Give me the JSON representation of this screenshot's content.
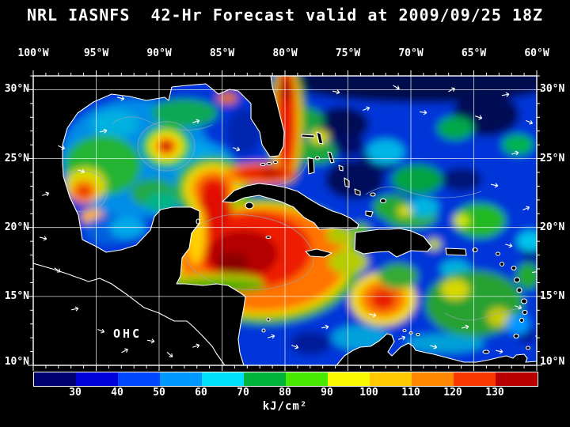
{
  "title": "NRL IASNFS  42-Hr Forecast valid at 2009/09/25 18Z",
  "axes": {
    "lon_ticks": [
      "100°W",
      "95°W",
      "90°W",
      "85°W",
      "80°W",
      "75°W",
      "70°W",
      "65°W",
      "60°W"
    ],
    "lat_ticks_left": [
      "30°N",
      "25°N",
      "20°N",
      "15°N",
      "10°N"
    ],
    "lat_ticks_right": [
      "30°N",
      "25°N",
      "20°N",
      "15°N",
      "10°N"
    ]
  },
  "map": {
    "overlay_label": "OHC"
  },
  "colorbar": {
    "tick_labels": [
      "30",
      "40",
      "50",
      "60",
      "70",
      "80",
      "90",
      "100",
      "110",
      "120",
      "130"
    ],
    "unit_label": "kJ/cm²",
    "segment_colors": [
      "#000070",
      "#0000d8",
      "#0048ff",
      "#0098ff",
      "#00e0f8",
      "#00b43c",
      "#48e800",
      "#f8f800",
      "#ffc800",
      "#ff8800",
      "#f83800",
      "#b80000"
    ]
  },
  "chart_data": {
    "type": "heatmap",
    "title": "NRL IASNFS 42-Hr Forecast valid at 2009/09/25 18Z",
    "variable": "OHC",
    "unit": "kJ/cm²",
    "scale_ticks": [
      30,
      40,
      50,
      60,
      70,
      80,
      90,
      100,
      110,
      120,
      130
    ],
    "x_axis": {
      "label": "longitude",
      "range_deg_west": [
        100,
        60
      ],
      "tick_step_deg": 5
    },
    "y_axis": {
      "label": "latitude",
      "range_deg_north": [
        10,
        31
      ],
      "tick_step_deg": 5
    },
    "grid": true,
    "legend_position": "bottom"
  }
}
